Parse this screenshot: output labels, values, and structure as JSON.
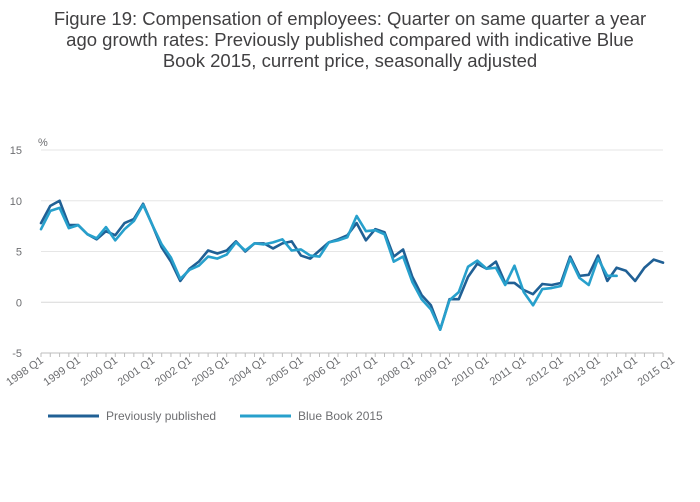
{
  "chart_data": {
    "type": "line",
    "title_lines": [
      "Figure 19: Compensation of employees: Quarter on same quarter a year",
      "ago growth rates: Previously published compared with indicative Blue",
      "Book 2015, current price, seasonally adjusted"
    ],
    "ylabel": "%",
    "xlabel": "",
    "ylim": [
      -5,
      15
    ],
    "yticks": [
      -5,
      0,
      5,
      10,
      15
    ],
    "grid": true,
    "legend_position": "bottom-left",
    "x_tick_labels": [
      "1998 Q1",
      "1999 Q1",
      "2000 Q1",
      "2001 Q1",
      "2002 Q1",
      "2003 Q1",
      "2004 Q1",
      "2005 Q1",
      "2006 Q1",
      "2007 Q1",
      "2008 Q1",
      "2009 Q1",
      "2010 Q1",
      "2011 Q1",
      "2012 Q1",
      "2013 Q1",
      "2014 Q1",
      "2015 Q1"
    ],
    "series": [
      {
        "name": "Previously published",
        "color": "#206095",
        "values": [
          7.8,
          9.5,
          10.0,
          7.6,
          7.6,
          6.7,
          6.2,
          7.0,
          6.6,
          7.8,
          8.2,
          9.7,
          7.6,
          5.4,
          4.0,
          2.1,
          3.3,
          4.0,
          5.1,
          4.8,
          5.1,
          6.0,
          5.0,
          5.8,
          5.8,
          5.3,
          5.8,
          6.0,
          4.6,
          4.3,
          5.1,
          5.9,
          6.2,
          6.6,
          7.8,
          6.1,
          7.2,
          6.9,
          4.5,
          5.2,
          2.5,
          0.7,
          -0.3,
          -2.7,
          0.3,
          0.3,
          2.5,
          3.8,
          3.3,
          4.0,
          1.9,
          1.9,
          1.2,
          0.8,
          1.8,
          1.7,
          1.9,
          4.5,
          2.6,
          2.7,
          4.6,
          2.1,
          3.4,
          3.1,
          2.1,
          3.4,
          4.2,
          3.9
        ]
      },
      {
        "name": "Blue Book 2015",
        "color": "#27A0CC",
        "values": [
          7.2,
          9.0,
          9.3,
          7.3,
          7.6,
          6.7,
          6.3,
          7.4,
          6.1,
          7.2,
          8.0,
          9.6,
          7.6,
          5.7,
          4.4,
          2.3,
          3.2,
          3.6,
          4.5,
          4.3,
          4.7,
          5.9,
          5.1,
          5.8,
          5.7,
          5.9,
          6.2,
          5.1,
          5.2,
          4.6,
          4.5,
          5.9,
          6.1,
          6.4,
          8.5,
          7.0,
          7.1,
          6.7,
          4.0,
          4.5,
          2.0,
          0.3,
          -0.7,
          -2.7,
          0.2,
          1.0,
          3.5,
          4.1,
          3.3,
          3.4,
          1.7,
          3.6,
          1.0,
          -0.3,
          1.3,
          1.4,
          1.6,
          4.3,
          2.4,
          1.7,
          4.3,
          2.6,
          2.6
        ]
      }
    ]
  }
}
